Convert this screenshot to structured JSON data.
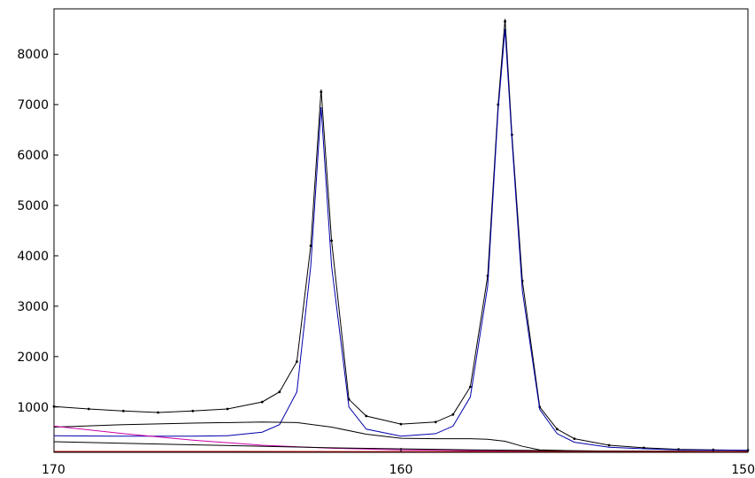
{
  "chart_data": {
    "type": "line",
    "title": "",
    "xlabel": "",
    "ylabel": "",
    "x_reversed": true,
    "xlim": [
      170,
      150
    ],
    "ylim": [
      100,
      8900
    ],
    "x_ticks": [
      170,
      160,
      150
    ],
    "x_tick_labels": [
      "170",
      "160",
      "150"
    ],
    "y_ticks": [
      1000,
      2000,
      3000,
      4000,
      5000,
      6000,
      7000,
      8000
    ],
    "y_tick_labels": [
      "1000",
      "2000",
      "3000",
      "4000",
      "5000",
      "6000",
      "7000",
      "8000"
    ],
    "grid": false,
    "legend": "none",
    "peaks": [
      {
        "position": 162.3,
        "height": 6950,
        "fwhm": 0.55
      },
      {
        "position": 157.0,
        "height": 8500,
        "fwhm": 0.55
      }
    ],
    "series": [
      {
        "style": "dots",
        "color": "#000000",
        "x": [
          170,
          169,
          168,
          167,
          166,
          165,
          164,
          163.5,
          163,
          162.6,
          162.3,
          162,
          161.5,
          161,
          160,
          159,
          158.5,
          158,
          157.5,
          157.2,
          157,
          156.8,
          156.5,
          156,
          155.5,
          155,
          154,
          153,
          152,
          151,
          150
        ],
        "y": [
          1010,
          960,
          920,
          890,
          920,
          960,
          1100,
          1300,
          1900,
          4200,
          7250,
          4300,
          1150,
          820,
          660,
          700,
          850,
          1400,
          3600,
          7000,
          8650,
          6400,
          3500,
          1000,
          560,
          370,
          240,
          190,
          160,
          150,
          140
        ]
      },
      {
        "style": "line",
        "color": "#000000",
        "x": [
          170,
          169,
          168,
          167,
          166,
          165,
          164,
          163.5,
          163,
          162.6,
          162.3,
          162,
          161.5,
          161,
          160,
          159,
          158.5,
          158,
          157.5,
          157.2,
          157,
          156.8,
          156.5,
          156,
          155.5,
          155,
          154,
          153,
          152,
          151,
          150
        ],
        "y": [
          1010,
          960,
          920,
          890,
          920,
          960,
          1100,
          1300,
          1900,
          4200,
          7300,
          4300,
          1150,
          820,
          660,
          700,
          850,
          1400,
          3600,
          7000,
          8700,
          6400,
          3500,
          1000,
          560,
          370,
          240,
          190,
          160,
          150,
          140
        ]
      },
      {
        "style": "line",
        "color": "#0000aa",
        "x": [
          170,
          168,
          166,
          165,
          164,
          163.5,
          163,
          162.6,
          162.3,
          162,
          161.5,
          161,
          160,
          159,
          158.5,
          158,
          157.5,
          157.2,
          157,
          156.8,
          156.5,
          156,
          155.5,
          155,
          154,
          153,
          152,
          150
        ],
        "y": [
          430,
          420,
          420,
          430,
          500,
          650,
          1300,
          3800,
          6950,
          3800,
          1000,
          560,
          420,
          470,
          620,
          1200,
          3400,
          6900,
          8500,
          6300,
          3300,
          950,
          470,
          300,
          200,
          170,
          150,
          140
        ]
      },
      {
        "style": "line",
        "color": "#000000",
        "x": [
          170,
          168,
          166,
          164,
          163,
          162,
          161,
          160,
          159,
          158,
          157.5,
          157,
          156.5,
          156,
          155,
          154,
          152,
          150
        ],
        "y": [
          600,
          650,
          680,
          700,
          690,
          600,
          460,
          380,
          370,
          370,
          360,
          320,
          220,
          150,
          130,
          125,
          120,
          118
        ]
      },
      {
        "style": "line",
        "color": "#cc00aa",
        "x": [
          170,
          168,
          166,
          164,
          162,
          160,
          158,
          156,
          154,
          152,
          150
        ],
        "y": [
          620,
          470,
          340,
          240,
          180,
          150,
          135,
          125,
          120,
          118,
          118
        ]
      },
      {
        "style": "line",
        "color": "#000000",
        "x": [
          170,
          166,
          162,
          158,
          154,
          150
        ],
        "y": [
          310,
          250,
          190,
          150,
          125,
          118
        ]
      },
      {
        "style": "line",
        "color": "#aa0000",
        "x": [
          170,
          160,
          150
        ],
        "y": [
          118,
          116,
          115
        ]
      }
    ]
  }
}
